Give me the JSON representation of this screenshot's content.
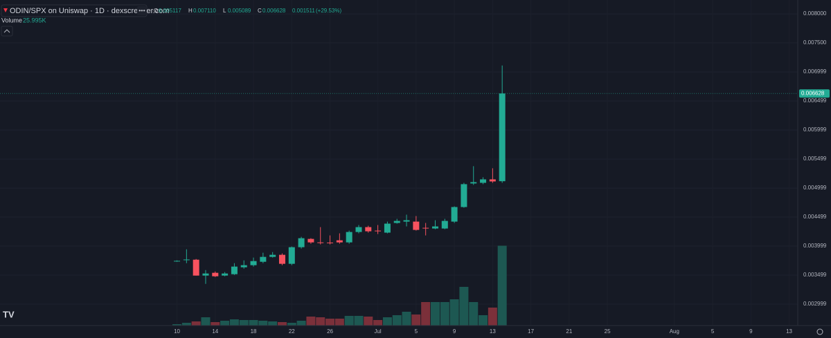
{
  "chart_data": {
    "type": "candlestick",
    "title": "ODIN/SPX on Uniswap · 1D · dexscreener.com",
    "legend_items": [
      {
        "key": "O",
        "value": "0.005117"
      },
      {
        "key": "H",
        "value": "0.007110"
      },
      {
        "key": "L",
        "value": "0.005089"
      },
      {
        "key": "C",
        "value": "0.006628"
      }
    ],
    "change": "0.001511",
    "change_percent": "(+29.53%)",
    "volume_title": "Volume",
    "volume_label": "25.995K",
    "up_color": "#22ab94",
    "down_color": "#f7525f",
    "volume_up_color": "#1d5852",
    "volume_down_color": "#7b303a",
    "grid": true,
    "open": [
      0.003741,
      0.003765,
      0.003765,
      0.003491,
      0.003539,
      0.003491,
      0.003515,
      0.003634,
      0.00367,
      0.003729,
      0.003813,
      0.003849,
      0.003694,
      0.00398,
      0.004123,
      0.004063,
      0.00406,
      0.004099,
      0.004063,
      0.004242,
      0.004326,
      0.004266,
      0.004231,
      0.004398,
      0.004421,
      0.004421,
      0.004314,
      0.004302,
      0.004302,
      0.004421,
      0.004672,
      0.005078,
      0.005089,
      0.005149,
      0.005117
    ],
    "high": [
      0.003753,
      0.003944,
      0.003777,
      0.003586,
      0.003562,
      0.003551,
      0.003705,
      0.003753,
      0.003801,
      0.003885,
      0.003896,
      0.003873,
      0.003992,
      0.004159,
      0.004135,
      0.004326,
      0.004183,
      0.004219,
      0.004266,
      0.004362,
      0.00435,
      0.004362,
      0.004421,
      0.004469,
      0.004541,
      0.004517,
      0.004398,
      0.004445,
      0.004469,
      0.004684,
      0.005089,
      0.005376,
      0.005185,
      0.00534,
      0.00711
    ],
    "low": [
      0.003729,
      0.003705,
      0.003491,
      0.003348,
      0.003467,
      0.003479,
      0.003503,
      0.00361,
      0.003646,
      0.003705,
      0.003801,
      0.00367,
      0.00367,
      0.003956,
      0.00404,
      0.004028,
      0.004028,
      0.00404,
      0.00404,
      0.004219,
      0.004231,
      0.004207,
      0.004219,
      0.004386,
      0.004338,
      0.004266,
      0.004183,
      0.00429,
      0.00429,
      0.004398,
      0.00466,
      0.005054,
      0.005066,
      0.005089,
      0.005089
    ],
    "close": [
      0.003745,
      0.003768,
      0.003491,
      0.003527,
      0.003479,
      0.003527,
      0.003646,
      0.00367,
      0.003741,
      0.003813,
      0.003849,
      0.003694,
      0.00398,
      0.004135,
      0.004063,
      0.004052,
      0.004052,
      0.004063,
      0.004242,
      0.004326,
      0.004254,
      0.004254,
      0.004386,
      0.004433,
      0.004445,
      0.004278,
      0.004302,
      0.004338,
      0.004433,
      0.004672,
      0.005066,
      0.005101,
      0.005149,
      0.005113,
      0.006628
    ],
    "volume": [
      450,
      900,
      1350,
      2700,
      1125,
      1575,
      2025,
      1800,
      1800,
      1575,
      1350,
      1125,
      900,
      1575,
      2925,
      2700,
      2250,
      2250,
      3150,
      3150,
      2925,
      1800,
      2700,
      3375,
      4500,
      3600,
      7650,
      7650,
      7650,
      8550,
      12600,
      7650,
      3375,
      5850,
      25995
    ],
    "ylim": [
      0.00263,
      0.008239
    ],
    "yticks": [
      {
        "value": 0.008,
        "label": "0.008000"
      },
      {
        "value": 0.0075,
        "label": "0.007500"
      },
      0.006999,
      0.006499,
      0.005999,
      0.005499,
      0.004999,
      0.004499,
      0.003999,
      0.003499,
      0.002999
    ],
    "volume_ylim": [
      0,
      31500
    ],
    "xlim": [
      -18.5,
      64.9
    ],
    "xticks": [
      {
        "value": 0,
        "label": "10"
      },
      {
        "value": 4,
        "label": "14"
      },
      {
        "value": 8,
        "label": "18"
      },
      {
        "value": 12,
        "label": "22"
      },
      {
        "value": 16,
        "label": "26"
      },
      {
        "value": 21,
        "label": "Jul"
      },
      {
        "value": 25,
        "label": "5"
      },
      {
        "value": 29,
        "label": "9"
      },
      {
        "value": 33,
        "label": "13"
      },
      {
        "value": 37,
        "label": "17"
      },
      {
        "value": 41,
        "label": "21"
      },
      {
        "value": 45,
        "label": "25"
      },
      {
        "value": 52,
        "label": "Aug"
      },
      {
        "value": 56,
        "label": "5"
      },
      {
        "value": 60,
        "label": "9"
      },
      {
        "value": 64,
        "label": "13"
      }
    ]
  }
}
